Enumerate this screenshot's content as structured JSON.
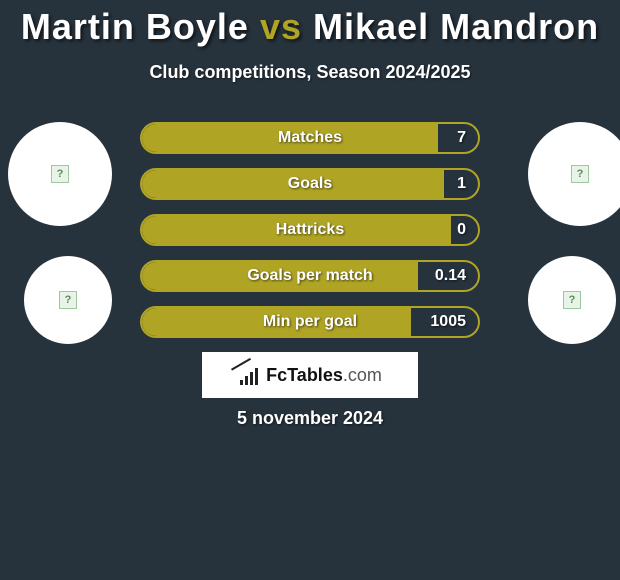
{
  "colors": {
    "background": "#26323c",
    "accent": "#b0a425",
    "white": "#ffffff",
    "text": "#ffffff"
  },
  "title": {
    "player1": "Martin Boyle",
    "vs": "vs",
    "player2": "Mikael Mandron"
  },
  "subtitle": "Club competitions, Season 2024/2025",
  "stats": [
    {
      "label": "Matches",
      "value_right": "7",
      "fill_pct": 88
    },
    {
      "label": "Goals",
      "value_right": "1",
      "fill_pct": 90
    },
    {
      "label": "Hattricks",
      "value_right": "0",
      "fill_pct": 92
    },
    {
      "label": "Goals per match",
      "value_right": "0.14",
      "fill_pct": 82
    },
    {
      "label": "Min per goal",
      "value_right": "1005",
      "fill_pct": 80
    }
  ],
  "logo": {
    "brand_main": "FcTables",
    "brand_suffix": ".com"
  },
  "date": "5 november 2024"
}
